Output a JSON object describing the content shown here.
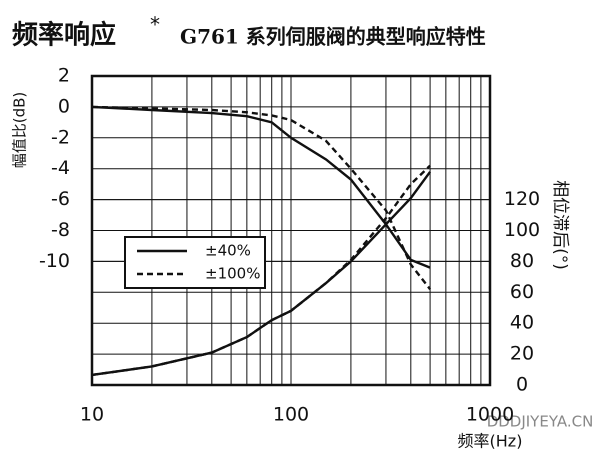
{
  "chart_data": {
    "type": "line",
    "title": "频率响应",
    "title_mark": "*",
    "subtitle": "G761 系列伺服阀的典型响应特性",
    "y_label": "幅值比(dB)",
    "y2_label": "相位滞后(°)",
    "x_label": "频率(Hz)",
    "watermark": "DDDJIYEYA.CN",
    "log_x": true,
    "grid": true,
    "x": [
      10,
      20,
      40,
      60,
      80,
      100,
      150,
      200,
      300,
      400,
      500
    ],
    "xlim": [
      10,
      1000
    ],
    "xticks": [
      10,
      100,
      1000
    ],
    "x_minor_ticks": [
      20,
      30,
      40,
      50,
      60,
      70,
      80,
      90,
      200,
      300,
      400,
      500,
      600,
      700,
      800,
      900
    ],
    "ylim": [
      -18,
      2
    ],
    "yticks": [
      2,
      0,
      -2,
      -4,
      -6,
      -8,
      -10
    ],
    "y2lim": [
      0,
      200
    ],
    "y2ticks": [
      0,
      20,
      40,
      60,
      80,
      100,
      120
    ],
    "legend_position": "center-left",
    "series": [
      {
        "name": "±40%",
        "color": "#111111",
        "dash": false,
        "values": [
          0,
          -0.2,
          -0.4,
          -0.6,
          -1,
          -2,
          -3.4,
          -4.7,
          -7.6,
          -9.9,
          -10.4
        ]
      },
      {
        "name": "±100%",
        "color": "#111111",
        "dash": true,
        "values": [
          0,
          -0.1,
          -0.2,
          -0.35,
          -0.55,
          -0.85,
          -2.2,
          -4,
          -6.7,
          -10.2,
          -11.8
        ]
      },
      {
        "name": "±40%",
        "color": "#111111",
        "dash": false,
        "axis": "y2",
        "legend": false,
        "values": [
          6.5,
          12,
          21,
          31,
          42,
          48,
          66,
          80,
          104,
          121,
          138
        ]
      },
      {
        "name": "±100%",
        "color": "#111111",
        "dash": true,
        "axis": "y2",
        "legend": false,
        "values": [
          6.5,
          12,
          21,
          31,
          42,
          48,
          66,
          81,
          108,
          130,
          142
        ]
      }
    ]
  }
}
